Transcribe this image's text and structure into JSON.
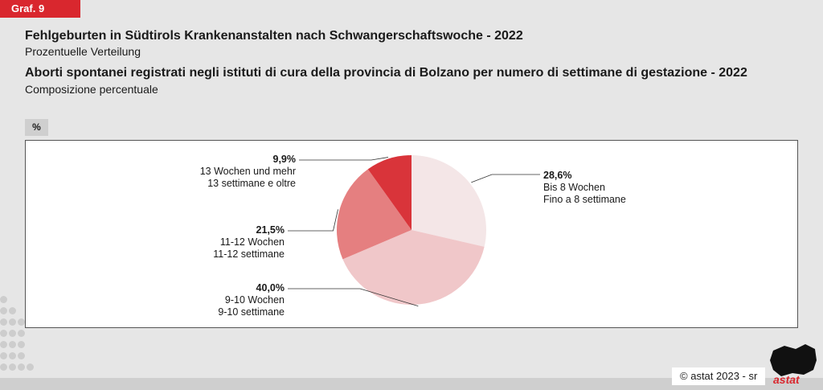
{
  "badge": "Graf. 9",
  "title_de": "Fehlgeburten in Südtirols Krankenanstalten nach Schwangerschaftswoche - 2022",
  "subtitle_de": "Prozentuelle Verteilung",
  "title_it": "Aborti spontanei registrati negli istituti di cura della provincia di Bolzano per numero di settimane di gestazione - 2022",
  "subtitle_it": "Composizione percentuale",
  "unit": "%",
  "footer": "astat 2023 - sr",
  "logo_text": "astat",
  "chart_data": {
    "type": "pie",
    "title": "Fehlgeburten in Südtirols Krankenanstalten nach Schwangerschaftswoche - 2022",
    "slices": [
      {
        "value": 28.6,
        "label": "28,6%",
        "name_de": "Bis 8 Wochen",
        "name_it": "Fino a 8 settimane",
        "color": "#f4e6e7"
      },
      {
        "value": 40.0,
        "label": "40,0%",
        "name_de": "9-10 Wochen",
        "name_it": "9-10 settimane",
        "color": "#f0c7c9"
      },
      {
        "value": 21.5,
        "label": "21,5%",
        "name_de": "11-12 Wochen",
        "name_it": "11-12 settimane",
        "color": "#e57f80"
      },
      {
        "value": 9.9,
        "label": "9,9%",
        "name_de": "13 Wochen und mehr",
        "name_it": "13 settimane e oltre",
        "color": "#d9343a"
      }
    ],
    "start": "12 o'clock, clockwise"
  }
}
